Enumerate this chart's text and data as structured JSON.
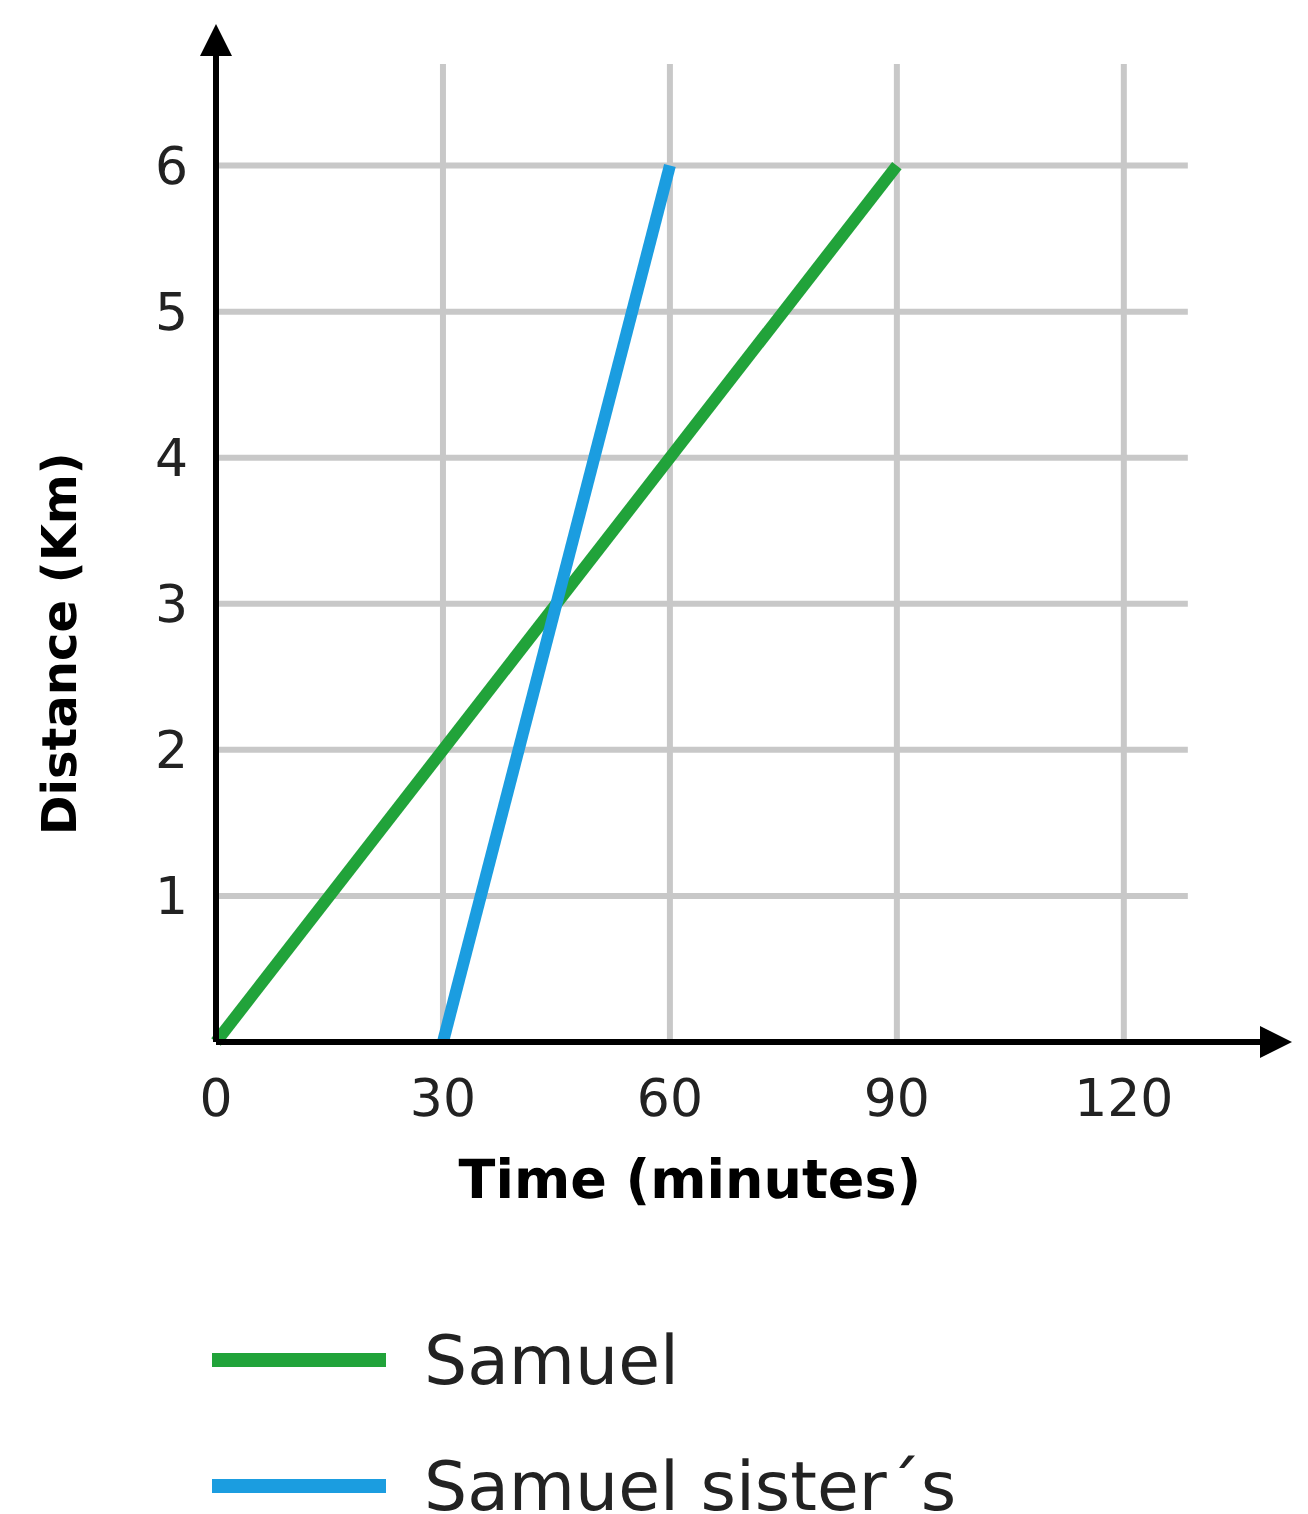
{
  "chart_data": {
    "type": "line",
    "xlabel": "Time (minutes)",
    "ylabel": "Distance (Km)",
    "xlim": [
      0,
      138
    ],
    "xticks": [
      0,
      30,
      60,
      90,
      120
    ],
    "ylim": [
      0,
      6.75
    ],
    "yticks": [
      1,
      2,
      3,
      4,
      5,
      6
    ],
    "grid": true,
    "legend": "bottom",
    "marker": "none",
    "line_style": "solid",
    "series": [
      {
        "name": "Samuel",
        "color": "#21a33a",
        "x": [
          0,
          90
        ],
        "values": [
          0,
          6
        ]
      },
      {
        "name": "Samuel sister´s",
        "color": "#1b9de0",
        "x": [
          30,
          60
        ],
        "values": [
          0,
          6
        ]
      }
    ]
  }
}
